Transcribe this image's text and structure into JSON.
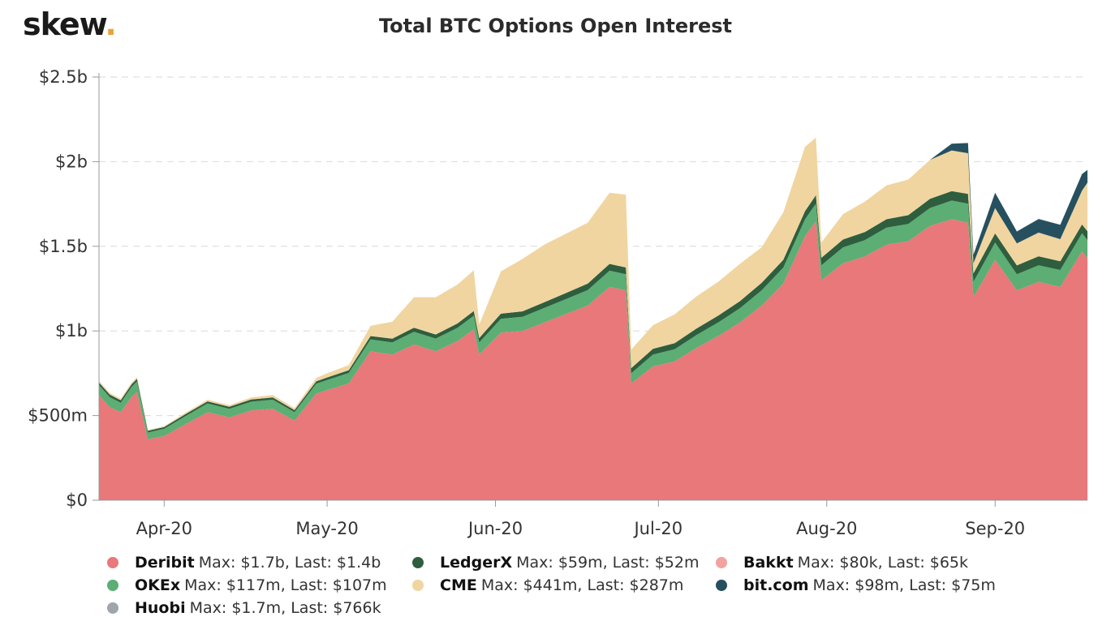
{
  "header": {
    "logo_text": "skew",
    "logo_dot": "."
  },
  "chart_data": {
    "type": "area",
    "stacked": true,
    "title": "Total BTC Options Open Interest",
    "xlabel": "",
    "ylabel": "",
    "ylim": [
      0,
      2500
    ],
    "y_unit": "millions USD",
    "y_ticks": [
      {
        "value": 0,
        "label": "$0"
      },
      {
        "value": 500,
        "label": "$500m"
      },
      {
        "value": 1000,
        "label": "$1b"
      },
      {
        "value": 1500,
        "label": "$1.5b"
      },
      {
        "value": 2000,
        "label": "$2b"
      },
      {
        "value": 2500,
        "label": "$2.5b"
      }
    ],
    "x_ticks": [
      {
        "date": "2020-04-01",
        "label": "Apr-20"
      },
      {
        "date": "2020-05-01",
        "label": "May-20"
      },
      {
        "date": "2020-06-01",
        "label": "Jun-20"
      },
      {
        "date": "2020-07-01",
        "label": "Jul-20"
      },
      {
        "date": "2020-08-01",
        "label": "Aug-20"
      },
      {
        "date": "2020-09-01",
        "label": "Sep-20"
      }
    ],
    "grid": "horizontal-dashed",
    "legend_position": "bottom",
    "x": [
      "2020-03-20",
      "2020-03-22",
      "2020-03-24",
      "2020-03-26",
      "2020-03-27",
      "2020-03-29",
      "2020-04-01",
      "2020-04-05",
      "2020-04-09",
      "2020-04-13",
      "2020-04-17",
      "2020-04-21",
      "2020-04-25",
      "2020-04-29",
      "2020-05-01",
      "2020-05-05",
      "2020-05-09",
      "2020-05-13",
      "2020-05-17",
      "2020-05-21",
      "2020-05-25",
      "2020-05-28",
      "2020-05-29",
      "2020-06-02",
      "2020-06-06",
      "2020-06-10",
      "2020-06-14",
      "2020-06-18",
      "2020-06-22",
      "2020-06-25",
      "2020-06-26",
      "2020-06-30",
      "2020-07-04",
      "2020-07-08",
      "2020-07-12",
      "2020-07-16",
      "2020-07-20",
      "2020-07-24",
      "2020-07-28",
      "2020-07-30",
      "2020-07-31",
      "2020-08-04",
      "2020-08-08",
      "2020-08-12",
      "2020-08-16",
      "2020-08-20",
      "2020-08-24",
      "2020-08-27",
      "2020-08-28",
      "2020-09-01",
      "2020-09-05",
      "2020-09-09",
      "2020-09-13",
      "2020-09-17",
      "2020-09-18"
    ],
    "series": [
      {
        "name": "Deribit",
        "color": "#e8787a",
        "legend_text": "Max: $1.7b, Last: $1.4b",
        "values": [
          620,
          550,
          520,
          610,
          640,
          360,
          380,
          450,
          520,
          490,
          530,
          540,
          470,
          630,
          650,
          690,
          880,
          860,
          920,
          880,
          940,
          1010,
          860,
          990,
          1000,
          1050,
          1100,
          1150,
          1260,
          1240,
          690,
          790,
          820,
          900,
          970,
          1050,
          1150,
          1280,
          1560,
          1650,
          1300,
          1400,
          1440,
          1510,
          1530,
          1620,
          1660,
          1640,
          1200,
          1420,
          1240,
          1290,
          1260,
          1470,
          1430
        ]
      },
      {
        "name": "OKEx",
        "color": "#5cae74",
        "legend_text": "Max: $117m, Last: $107m",
        "values": [
          60,
          58,
          56,
          60,
          62,
          40,
          42,
          48,
          52,
          50,
          52,
          54,
          50,
          58,
          60,
          62,
          70,
          72,
          75,
          75,
          78,
          80,
          72,
          82,
          84,
          86,
          88,
          92,
          96,
          95,
          60,
          70,
          72,
          76,
          80,
          84,
          90,
          94,
          100,
          102,
          88,
          94,
          96,
          100,
          102,
          106,
          110,
          112,
          90,
          102,
          95,
          98,
          100,
          107,
          107
        ]
      },
      {
        "name": "LedgerX",
        "color": "#2e5e3e",
        "legend_text": "Max: $59m, Last: $52m",
        "values": [
          15,
          15,
          14,
          15,
          15,
          10,
          10,
          12,
          12,
          12,
          13,
          13,
          12,
          14,
          15,
          16,
          20,
          22,
          24,
          24,
          26,
          28,
          26,
          30,
          32,
          34,
          36,
          38,
          40,
          40,
          30,
          34,
          36,
          38,
          40,
          42,
          44,
          46,
          48,
          50,
          44,
          46,
          48,
          50,
          52,
          54,
          56,
          58,
          50,
          54,
          52,
          53,
          52,
          52,
          52
        ]
      },
      {
        "name": "CME",
        "color": "#f0d5a0",
        "legend_text": "Max: $441m, Last: $287m",
        "values": [
          10,
          10,
          10,
          10,
          10,
          5,
          5,
          8,
          10,
          10,
          12,
          14,
          12,
          20,
          25,
          30,
          60,
          100,
          180,
          220,
          230,
          240,
          80,
          250,
          310,
          340,
          350,
          360,
          420,
          430,
          110,
          140,
          170,
          190,
          200,
          220,
          210,
          280,
          380,
          340,
          90,
          150,
          180,
          200,
          210,
          230,
          240,
          240,
          60,
          150,
          130,
          140,
          130,
          200,
          287
        ]
      },
      {
        "name": "Bakkt",
        "color": "#f2a3a0",
        "legend_text": "Max: $80k, Last: $65k",
        "values": [
          0,
          0,
          0,
          0,
          0,
          0,
          0,
          0,
          0,
          0,
          0,
          0,
          0,
          0,
          0,
          0,
          0,
          0,
          0,
          0,
          0,
          0,
          0,
          0,
          0,
          0,
          0,
          0,
          0,
          0,
          0,
          0,
          0,
          0,
          0,
          0,
          0,
          0,
          0,
          0,
          0,
          0,
          0,
          0,
          0,
          0,
          0,
          0,
          0,
          0,
          0,
          0,
          0,
          0,
          0
        ]
      },
      {
        "name": "bit.com",
        "color": "#26505f",
        "legend_text": "Max: $98m, Last: $75m",
        "values": [
          0,
          0,
          0,
          0,
          0,
          0,
          0,
          0,
          0,
          0,
          0,
          0,
          0,
          0,
          0,
          0,
          0,
          0,
          0,
          0,
          0,
          0,
          0,
          0,
          0,
          0,
          0,
          0,
          0,
          0,
          0,
          0,
          0,
          0,
          0,
          0,
          0,
          0,
          0,
          0,
          0,
          0,
          0,
          0,
          0,
          0,
          40,
          60,
          50,
          90,
          70,
          80,
          85,
          98,
          75
        ]
      },
      {
        "name": "Huobi",
        "color": "#a0a4ac",
        "legend_text": "Max: $1.7m, Last: $766k",
        "values": [
          0,
          0,
          0,
          0,
          0,
          0,
          0,
          0,
          0,
          0,
          0,
          0,
          0,
          0,
          0,
          0,
          0,
          0,
          0,
          0,
          0,
          0,
          0,
          0,
          0,
          0,
          0,
          0,
          0,
          0,
          0,
          0,
          0,
          0,
          0,
          0,
          0,
          0,
          0,
          0,
          0,
          0,
          0,
          0,
          0,
          0,
          0,
          0,
          0,
          1.2,
          1.5,
          1.7,
          1.0,
          0.9,
          0.77
        ]
      }
    ]
  },
  "legend_rows": [
    [
      "Deribit",
      "LedgerX",
      "Bakkt"
    ],
    [
      "OKEx",
      "CME",
      "bit.com"
    ],
    [
      "Huobi"
    ]
  ]
}
